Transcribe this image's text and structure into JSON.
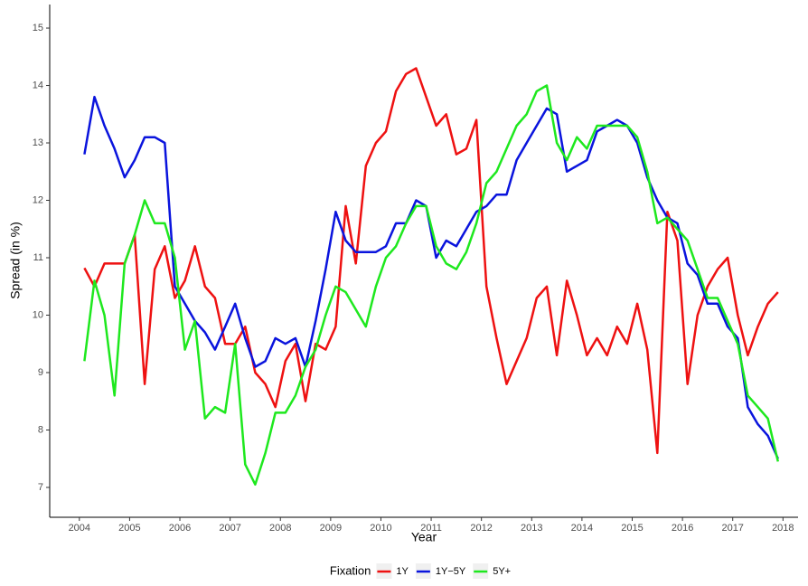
{
  "chart_data": {
    "type": "line",
    "x_label": "Year",
    "y_label": "Spread (in %)",
    "x": [
      2004.1,
      2004.3,
      2004.5,
      2004.7,
      2004.9,
      2005.1,
      2005.3,
      2005.5,
      2005.7,
      2005.9,
      2006.1,
      2006.3,
      2006.5,
      2006.7,
      2006.9,
      2007.1,
      2007.3,
      2007.5,
      2007.7,
      2007.9,
      2008.1,
      2008.3,
      2008.5,
      2008.7,
      2008.9,
      2009.1,
      2009.3,
      2009.5,
      2009.7,
      2009.9,
      2010.1,
      2010.3,
      2010.5,
      2010.7,
      2010.9,
      2011.1,
      2011.3,
      2011.5,
      2011.7,
      2011.9,
      2012.1,
      2012.3,
      2012.5,
      2012.7,
      2012.9,
      2013.1,
      2013.3,
      2013.5,
      2013.7,
      2013.9,
      2014.1,
      2014.3,
      2014.5,
      2014.7,
      2014.9,
      2015.1,
      2015.3,
      2015.5,
      2015.7,
      2015.9,
      2016.1,
      2016.3,
      2016.5,
      2016.7,
      2016.9,
      2017.1,
      2017.3,
      2017.5,
      2017.7,
      2017.9
    ],
    "series": [
      {
        "name": "1Y",
        "color": "#ee1111",
        "values": [
          10.82,
          10.5,
          10.9,
          10.9,
          10.9,
          11.4,
          8.8,
          10.8,
          11.2,
          10.3,
          10.6,
          11.2,
          10.5,
          10.3,
          9.5,
          9.5,
          9.8,
          9.0,
          8.8,
          8.4,
          9.2,
          9.5,
          8.5,
          9.5,
          9.4,
          9.8,
          11.9,
          10.9,
          12.6,
          13.0,
          13.2,
          13.9,
          14.2,
          14.3,
          13.8,
          13.3,
          13.5,
          12.8,
          12.9,
          13.4,
          10.5,
          9.6,
          8.8,
          9.2,
          9.6,
          10.3,
          10.5,
          9.3,
          10.6,
          10.0,
          9.3,
          9.6,
          9.3,
          9.8,
          9.5,
          10.2,
          9.4,
          7.6,
          11.8,
          11.3,
          8.8,
          10.0,
          10.5,
          10.8,
          11.0,
          10.0,
          9.3,
          9.8,
          10.2,
          10.4
        ]
      },
      {
        "name": "1Y−5Y",
        "color": "#0a14dd",
        "values": [
          12.8,
          13.8,
          13.3,
          12.9,
          12.4,
          12.7,
          13.1,
          13.1,
          13.0,
          10.5,
          10.2,
          9.9,
          9.7,
          9.4,
          9.8,
          10.2,
          9.6,
          9.1,
          9.2,
          9.6,
          9.5,
          9.6,
          9.1,
          9.9,
          10.8,
          11.8,
          11.3,
          11.1,
          11.1,
          11.1,
          11.2,
          11.6,
          11.6,
          12.0,
          11.9,
          11.0,
          11.3,
          11.2,
          11.5,
          11.8,
          11.9,
          12.1,
          12.1,
          12.7,
          13.0,
          13.3,
          13.6,
          13.5,
          12.5,
          12.6,
          12.7,
          13.2,
          13.3,
          13.4,
          13.3,
          13.0,
          12.4,
          12.0,
          11.7,
          11.6,
          10.9,
          10.7,
          10.2,
          10.2,
          9.8,
          9.6,
          8.4,
          8.1,
          7.9,
          7.5
        ]
      },
      {
        "name": "5Y+",
        "color": "#1ee81e",
        "values": [
          9.2,
          10.6,
          10.0,
          8.6,
          10.9,
          11.4,
          12.0,
          11.6,
          11.6,
          11.0,
          9.4,
          9.9,
          8.2,
          8.4,
          8.3,
          9.5,
          7.4,
          7.05,
          7.6,
          8.3,
          8.3,
          8.6,
          9.1,
          9.4,
          10.0,
          10.5,
          10.4,
          10.1,
          9.8,
          10.5,
          11.0,
          11.2,
          11.6,
          11.9,
          11.9,
          11.2,
          10.9,
          10.8,
          11.1,
          11.6,
          12.3,
          12.5,
          12.9,
          13.3,
          13.5,
          13.9,
          14.0,
          13.0,
          12.7,
          13.1,
          12.9,
          13.3,
          13.3,
          13.3,
          13.3,
          13.1,
          12.5,
          11.6,
          11.7,
          11.5,
          11.3,
          10.8,
          10.3,
          10.3,
          9.9,
          9.5,
          8.6,
          8.4,
          8.2,
          7.45
        ]
      }
    ],
    "xlim": [
      2003.41,
      2018.3
    ],
    "xticks": [
      2004,
      2005,
      2006,
      2007,
      2008,
      2009,
      2010,
      2011,
      2012,
      2013,
      2014,
      2015,
      2016,
      2017,
      2018
    ],
    "ylim": [
      6.48,
      15.41
    ],
    "yticks": [
      7,
      8,
      9,
      10,
      11,
      12,
      13,
      14,
      15
    ],
    "grid": false,
    "legend_title": "Fixation",
    "legend_position": "bottom"
  }
}
